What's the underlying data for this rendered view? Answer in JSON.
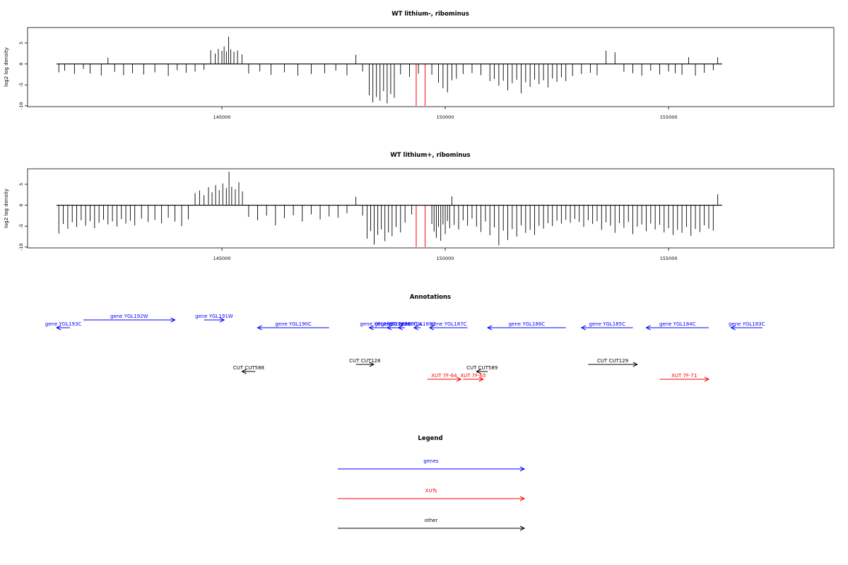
{
  "chart_data": [
    {
      "type": "bar",
      "title": "WT lithium-, ribominus",
      "ylabel": "log2 log density",
      "xlim": [
        140650,
        158700
      ],
      "ylim": [
        -10.2,
        8.7
      ],
      "xticks": [
        145000,
        150000,
        155000
      ],
      "xtick_labels": [
        "145000",
        "150000",
        "155000"
      ],
      "yticks": [
        5,
        0,
        -5,
        -10
      ],
      "ytick_labels": [
        "5",
        "0",
        "-5",
        "-10"
      ],
      "grid": false,
      "baseline": {
        "from": 141300,
        "to": 156200,
        "y": 0
      },
      "series_color": "#000000",
      "bars": [
        [
          141350,
          -2
        ],
        [
          141480,
          -1.6
        ],
        [
          141700,
          -2.4
        ],
        [
          141900,
          -1.2
        ],
        [
          142050,
          -2.3
        ],
        [
          142300,
          -2.8
        ],
        [
          142450,
          1.5
        ],
        [
          142600,
          -1.9
        ],
        [
          142800,
          -2.7
        ],
        [
          143000,
          -2.2
        ],
        [
          143250,
          -2.5
        ],
        [
          143500,
          -2
        ],
        [
          143800,
          -2.9
        ],
        [
          144000,
          -1.5
        ],
        [
          144200,
          -2.1
        ],
        [
          144400,
          -1.8
        ],
        [
          144600,
          -1.4
        ],
        [
          144750,
          3.3
        ],
        [
          144850,
          2.5
        ],
        [
          144920,
          3.6
        ],
        [
          145000,
          3.1
        ],
        [
          145050,
          4.2
        ],
        [
          145100,
          3
        ],
        [
          145150,
          6.5
        ],
        [
          145200,
          3.5
        ],
        [
          145270,
          2.9
        ],
        [
          145350,
          3.2
        ],
        [
          145450,
          2.3
        ],
        [
          145600,
          -2.3
        ],
        [
          145850,
          -1.8
        ],
        [
          146100,
          -2.6
        ],
        [
          146400,
          -2
        ],
        [
          146700,
          -2.8
        ],
        [
          147000,
          -2.4
        ],
        [
          147300,
          -2.2
        ],
        [
          147550,
          -1.6
        ],
        [
          147800,
          -2.7
        ],
        [
          148000,
          2.2
        ],
        [
          148150,
          -1.8
        ],
        [
          148300,
          -7.5
        ],
        [
          148380,
          -9.2
        ],
        [
          148460,
          -7.9
        ],
        [
          148540,
          -8.8
        ],
        [
          148620,
          -6.5
        ],
        [
          148700,
          -9.4
        ],
        [
          148780,
          -7.2
        ],
        [
          148860,
          -8.1
        ],
        [
          149000,
          -2.5
        ],
        [
          149200,
          -3.1
        ],
        [
          149400,
          -2.3
        ],
        [
          149700,
          -2.6
        ],
        [
          149850,
          -4.5
        ],
        [
          149950,
          -5.8
        ],
        [
          150050,
          -6.8
        ],
        [
          150150,
          -3.9
        ],
        [
          150250,
          -3.5
        ],
        [
          150400,
          -2.4
        ],
        [
          150600,
          -2.2
        ],
        [
          150800,
          -2.7
        ],
        [
          151000,
          -4.1
        ],
        [
          151100,
          -3.6
        ],
        [
          151200,
          -5.2
        ],
        [
          151300,
          -4
        ],
        [
          151400,
          -6.3
        ],
        [
          151500,
          -4.6
        ],
        [
          151600,
          -3.8
        ],
        [
          151700,
          -7
        ],
        [
          151800,
          -4.4
        ],
        [
          151900,
          -5.5
        ],
        [
          152000,
          -3.7
        ],
        [
          152100,
          -4.8
        ],
        [
          152200,
          -3.9
        ],
        [
          152300,
          -5.6
        ],
        [
          152400,
          -3.5
        ],
        [
          152500,
          -4.3
        ],
        [
          152600,
          -3.2
        ],
        [
          152700,
          -4.1
        ],
        [
          152850,
          -2.9
        ],
        [
          153050,
          -2.4
        ],
        [
          153250,
          -2.1
        ],
        [
          153400,
          -2.7
        ],
        [
          153600,
          3.2
        ],
        [
          153800,
          2.8
        ],
        [
          154000,
          -1.9
        ],
        [
          154200,
          -2.2
        ],
        [
          154400,
          -2.8
        ],
        [
          154600,
          -1.6
        ],
        [
          154800,
          -2.5
        ],
        [
          155000,
          -1.8
        ],
        [
          155150,
          -2.2
        ],
        [
          155300,
          -2.6
        ],
        [
          155450,
          1.6
        ],
        [
          155600,
          -2.8
        ],
        [
          155800,
          -2.1
        ],
        [
          156000,
          -1.5
        ],
        [
          156100,
          1.6
        ]
      ],
      "red_lines": [
        149350,
        149550
      ]
    },
    {
      "type": "bar",
      "title": "WT lithium+, ribominus",
      "ylabel": "log2 log density",
      "xlim": [
        140650,
        158700
      ],
      "ylim": [
        -10.2,
        8.7
      ],
      "xticks": [
        145000,
        150000,
        155000
      ],
      "xtick_labels": [
        "145000",
        "150000",
        "155000"
      ],
      "yticks": [
        5,
        0,
        -5,
        -10
      ],
      "ytick_labels": [
        "5",
        "0",
        "-5",
        "-10"
      ],
      "grid": false,
      "baseline": {
        "from": 141300,
        "to": 156200,
        "y": 0
      },
      "series_color": "#000000",
      "bars": [
        [
          141350,
          -6.8
        ],
        [
          141450,
          -4.5
        ],
        [
          141550,
          -5.6
        ],
        [
          141650,
          -4.1
        ],
        [
          141750,
          -5.2
        ],
        [
          141850,
          -3.6
        ],
        [
          141950,
          -4.9
        ],
        [
          142050,
          -3.8
        ],
        [
          142150,
          -5.5
        ],
        [
          142250,
          -4.2
        ],
        [
          142350,
          -3.5
        ],
        [
          142450,
          -4.6
        ],
        [
          142550,
          -3.9
        ],
        [
          142650,
          -5.1
        ],
        [
          142750,
          -3.3
        ],
        [
          142850,
          -4.4
        ],
        [
          142950,
          -3.7
        ],
        [
          143050,
          -4.8
        ],
        [
          143200,
          -3.2
        ],
        [
          143350,
          -4
        ],
        [
          143500,
          -3.5
        ],
        [
          143650,
          -4.3
        ],
        [
          143800,
          -3
        ],
        [
          143950,
          -3.9
        ],
        [
          144100,
          -5
        ],
        [
          144250,
          -3.4
        ],
        [
          144400,
          2.9
        ],
        [
          144500,
          3.5
        ],
        [
          144600,
          2.4
        ],
        [
          144700,
          4.3
        ],
        [
          144780,
          3.1
        ],
        [
          144860,
          4.8
        ],
        [
          144940,
          3.6
        ],
        [
          145020,
          5.2
        ],
        [
          145100,
          4.1
        ],
        [
          145160,
          8
        ],
        [
          145220,
          4.4
        ],
        [
          145300,
          3.8
        ],
        [
          145380,
          5.5
        ],
        [
          145460,
          3.3
        ],
        [
          145600,
          -2.8
        ],
        [
          145800,
          -3.6
        ],
        [
          146000,
          -2.5
        ],
        [
          146200,
          -4.8
        ],
        [
          146400,
          -3.1
        ],
        [
          146600,
          -2.4
        ],
        [
          146800,
          -3.9
        ],
        [
          147000,
          -2.2
        ],
        [
          147200,
          -3.4
        ],
        [
          147400,
          -2.7
        ],
        [
          147600,
          -3
        ],
        [
          147800,
          -1.9
        ],
        [
          148000,
          2
        ],
        [
          148150,
          -2.5
        ],
        [
          148250,
          -8
        ],
        [
          148330,
          -6.2
        ],
        [
          148410,
          -9.4
        ],
        [
          148490,
          -7.1
        ],
        [
          148570,
          -5.8
        ],
        [
          148650,
          -8.6
        ],
        [
          148730,
          -6.5
        ],
        [
          148810,
          -7.4
        ],
        [
          148900,
          -5.2
        ],
        [
          149000,
          -6.5
        ],
        [
          149100,
          -4.2
        ],
        [
          149250,
          -2.2
        ],
        [
          149700,
          -4.5
        ],
        [
          149750,
          -6.3
        ],
        [
          149800,
          -7.8
        ],
        [
          149850,
          -5.2
        ],
        [
          149900,
          -8.5
        ],
        [
          149950,
          -4.6
        ],
        [
          150000,
          -6.9
        ],
        [
          150050,
          -3.8
        ],
        [
          150100,
          -5.5
        ],
        [
          150150,
          2.1
        ],
        [
          150200,
          -4.7
        ],
        [
          150300,
          -5.8
        ],
        [
          150400,
          -3.6
        ],
        [
          150500,
          -4.9
        ],
        [
          150600,
          -3.2
        ],
        [
          150700,
          -5.1
        ],
        [
          150800,
          -6.4
        ],
        [
          150900,
          -3.9
        ],
        [
          151000,
          -7.2
        ],
        [
          151100,
          -5.3
        ],
        [
          151200,
          -9.6
        ],
        [
          151300,
          -6.1
        ],
        [
          151400,
          -8.3
        ],
        [
          151500,
          -5.7
        ],
        [
          151600,
          -7.5
        ],
        [
          151700,
          -4.8
        ],
        [
          151800,
          -6.6
        ],
        [
          151900,
          -5.9
        ],
        [
          152000,
          -7.1
        ],
        [
          152100,
          -4.9
        ],
        [
          152200,
          -5.6
        ],
        [
          152300,
          -4.3
        ],
        [
          152400,
          -5
        ],
        [
          152500,
          -3.7
        ],
        [
          152600,
          -4.4
        ],
        [
          152700,
          -3.5
        ],
        [
          152800,
          -4.2
        ],
        [
          152900,
          -3.3
        ],
        [
          153000,
          -4
        ],
        [
          153100,
          -5.2
        ],
        [
          153200,
          -3.6
        ],
        [
          153300,
          -4.5
        ],
        [
          153400,
          -3.8
        ],
        [
          153500,
          -5.9
        ],
        [
          153600,
          -4.1
        ],
        [
          153700,
          -4.9
        ],
        [
          153800,
          -6.6
        ],
        [
          153900,
          -4.3
        ],
        [
          154000,
          -5.4
        ],
        [
          154100,
          -4
        ],
        [
          154200,
          -6.9
        ],
        [
          154300,
          -5.1
        ],
        [
          154400,
          -4.6
        ],
        [
          154500,
          -6.2
        ],
        [
          154600,
          -4.4
        ],
        [
          154700,
          -5.8
        ],
        [
          154800,
          -4.7
        ],
        [
          154900,
          -6.5
        ],
        [
          155000,
          -5.5
        ],
        [
          155100,
          -7.1
        ],
        [
          155200,
          -5.9
        ],
        [
          155300,
          -6.6
        ],
        [
          155400,
          -5.2
        ],
        [
          155500,
          -7.3
        ],
        [
          155600,
          -5.7
        ],
        [
          155700,
          -6.4
        ],
        [
          155800,
          -4.8
        ],
        [
          155900,
          -5.6
        ],
        [
          156000,
          -6.1
        ],
        [
          156100,
          2.6
        ]
      ],
      "red_lines": [
        149350,
        149550
      ]
    }
  ],
  "annotations": {
    "title": "Annotations",
    "items": [
      {
        "label": "gene YGL193C",
        "start": 141300,
        "end": 141600,
        "dir": "left",
        "row": "gene_low",
        "color": "#0000ff"
      },
      {
        "label": "gene YGL192W",
        "start": 141900,
        "end": 143950,
        "dir": "right",
        "row": "gene_high",
        "color": "#0000ff"
      },
      {
        "label": "gene YGL191W",
        "start": 144600,
        "end": 145050,
        "dir": "right",
        "row": "gene_high",
        "color": "#0000ff"
      },
      {
        "label": "gene YGL190C",
        "start": 145800,
        "end": 147400,
        "dir": "left",
        "row": "gene_low",
        "color": "#0000ff"
      },
      {
        "label": "gene YGL189C",
        "start": 148300,
        "end": 148700,
        "dir": "left",
        "row": "gene_low",
        "color": "#0000ff"
      },
      {
        "label": "gene YGL188C",
        "start": 148700,
        "end": 148950,
        "dir": "left",
        "row": "gene_low",
        "color": "#0000ff"
      },
      {
        "label": "gene YGL188C-A",
        "start": 148950,
        "end": 149100,
        "dir": "left",
        "row": "gene_low",
        "color": "#0000ff"
      },
      {
        "label": "gene YGL189C",
        "start": 149300,
        "end": 149450,
        "dir": "left",
        "row": "gene_low",
        "color": "#0000ff"
      },
      {
        "label": "gene YGL187C",
        "start": 149650,
        "end": 150500,
        "dir": "left",
        "row": "gene_low",
        "color": "#0000ff"
      },
      {
        "label": "gene YGL186C",
        "start": 150950,
        "end": 152700,
        "dir": "left",
        "row": "gene_low",
        "color": "#0000ff"
      },
      {
        "label": "gene YGL185C",
        "start": 153050,
        "end": 154200,
        "dir": "left",
        "row": "gene_low",
        "color": "#0000ff"
      },
      {
        "label": "gene YGL184C",
        "start": 154500,
        "end": 155900,
        "dir": "left",
        "row": "gene_low",
        "color": "#0000ff"
      },
      {
        "label": "gene YGL183C",
        "start": 156400,
        "end": 157100,
        "dir": "left",
        "row": "gene_low",
        "color": "#0000ff"
      },
      {
        "label": "CUT CUT588",
        "start": 145450,
        "end": 145750,
        "dir": "left",
        "row": "other_low",
        "color": "#000000"
      },
      {
        "label": "CUT CUT128",
        "start": 148000,
        "end": 148400,
        "dir": "right",
        "row": "other_high",
        "color": "#000000"
      },
      {
        "label": "CUT CUT589",
        "start": 150700,
        "end": 150950,
        "dir": "left",
        "row": "other_low",
        "color": "#000000"
      },
      {
        "label": "CUT CUT129",
        "start": 153200,
        "end": 154300,
        "dir": "right",
        "row": "other_high",
        "color": "#000000"
      },
      {
        "label": "XUT 7F-64",
        "start": 149600,
        "end": 150350,
        "dir": "right",
        "row": "xut",
        "color": "#ff0000"
      },
      {
        "label": "XUT 7F-65",
        "start": 150400,
        "end": 150850,
        "dir": "right",
        "row": "xut",
        "color": "#ff0000"
      },
      {
        "label": "XUT 7F-71",
        "start": 154800,
        "end": 155900,
        "dir": "right",
        "row": "xut",
        "color": "#ff0000"
      }
    ]
  },
  "legend": {
    "title": "Legend",
    "items": [
      {
        "label": "genes",
        "color": "#0000ff"
      },
      {
        "label": "XUTs",
        "color": "#ff0000"
      },
      {
        "label": "other",
        "color": "#000000"
      }
    ]
  }
}
